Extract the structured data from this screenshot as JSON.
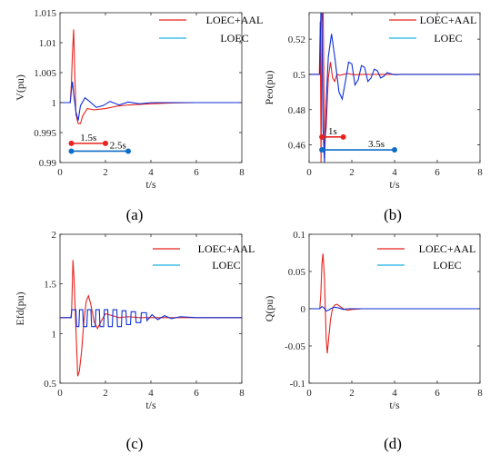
{
  "chart_data": [
    {
      "type": "line",
      "panel_label": "(a)",
      "xlabel": "t/s",
      "ylabel": "V(pu)",
      "xlim": [
        0,
        8
      ],
      "ylim": [
        0.99,
        1.015
      ],
      "xticks": [
        0,
        2,
        4,
        6,
        8
      ],
      "xtick_labels": [
        "0",
        "2",
        "4",
        "6",
        "8"
      ],
      "yticks": [
        0.99,
        0.995,
        1,
        1.005,
        1.01,
        1.015
      ],
      "ytick_labels": [
        "0.99",
        "0.995",
        "1",
        "1.005",
        "1.01",
        "1.015"
      ],
      "legend": "top-right",
      "series": [
        {
          "name": "LOEC+AAL",
          "color": "#e8231e",
          "x": [
            0,
            0.45,
            0.5,
            0.55,
            0.6,
            0.65,
            0.7,
            0.8,
            0.9,
            1.0,
            1.2,
            1.5,
            2.0,
            2.5,
            3.0,
            4.0,
            5.0,
            6.0,
            8.0
          ],
          "y": [
            1.0,
            1.0,
            1.003,
            1.0085,
            1.0122,
            1.005,
            0.998,
            0.9965,
            0.9965,
            0.9978,
            0.999,
            0.9988,
            0.999,
            0.9994,
            0.9996,
            0.9998,
            0.99995,
            1.0,
            1.0
          ]
        },
        {
          "name": "LOEC",
          "color": "#0e2fd6",
          "x": [
            0,
            0.45,
            0.5,
            0.55,
            0.6,
            0.7,
            0.8,
            0.9,
            1.1,
            1.3,
            1.6,
            1.9,
            2.2,
            2.6,
            3.0,
            3.5,
            4.0,
            5.0,
            6.0,
            8.0
          ],
          "y": [
            1.0,
            1.0,
            1.002,
            1.0035,
            1.0015,
            0.9985,
            0.997,
            0.9995,
            1.0008,
            1.0002,
            0.9992,
            0.9995,
            1.0002,
            0.9996,
            1.0001,
            0.9998,
            1.0,
            1.0,
            1.0,
            1.0
          ]
        }
      ],
      "annotations": [
        {
          "text": "1.5s",
          "x_start": 0.5,
          "x_end": 2.0,
          "y": 0.9932,
          "color": "#e8231e"
        },
        {
          "text": "2.5s",
          "x_start": 0.5,
          "x_end": 3.0,
          "y": 0.9919,
          "color": "#0e6ec7"
        }
      ]
    },
    {
      "type": "line",
      "panel_label": "(b)",
      "xlabel": "t/s",
      "ylabel": "Peo(pu)",
      "xlim": [
        0,
        8
      ],
      "ylim": [
        0.45,
        0.535
      ],
      "xticks": [
        0,
        2,
        4,
        6,
        8
      ],
      "xtick_labels": [
        "0",
        "2",
        "4",
        "6",
        "8"
      ],
      "yticks": [
        0.46,
        0.48,
        0.5,
        0.52
      ],
      "ytick_labels": [
        "0.46",
        "0.48",
        "0.5",
        "0.52"
      ],
      "legend": "top-right",
      "series": [
        {
          "name": "LOEC+AAL",
          "color": "#e8231e",
          "x": [
            0,
            0.48,
            0.52,
            0.56,
            0.6,
            0.66,
            0.72,
            0.8,
            0.9,
            1.0,
            1.1,
            1.2,
            1.3,
            1.45,
            1.6,
            1.8,
            2.1,
            2.5,
            3.0,
            4.0,
            8.0
          ],
          "y": [
            0.5,
            0.5,
            0.53,
            0.45,
            0.53,
            0.535,
            0.46,
            0.47,
            0.498,
            0.507,
            0.498,
            0.496,
            0.5,
            0.4995,
            0.5,
            0.5005,
            0.4998,
            0.5,
            0.5,
            0.5,
            0.5
          ]
        },
        {
          "name": "LOEC",
          "color": "#0e2fd6",
          "x": [
            0,
            0.5,
            0.55,
            0.6,
            0.65,
            0.72,
            0.8,
            0.9,
            1.05,
            1.2,
            1.4,
            1.55,
            1.7,
            1.85,
            2.0,
            2.15,
            2.3,
            2.45,
            2.6,
            2.75,
            2.9,
            3.05,
            3.2,
            3.35,
            3.5,
            3.65,
            3.8,
            4.0,
            4.3,
            8.0
          ],
          "y": [
            0.5,
            0.5,
            0.535,
            0.535,
            0.47,
            0.45,
            0.485,
            0.51,
            0.523,
            0.51,
            0.49,
            0.486,
            0.496,
            0.507,
            0.506,
            0.494,
            0.497,
            0.505,
            0.504,
            0.496,
            0.498,
            0.503,
            0.502,
            0.498,
            0.499,
            0.501,
            0.5005,
            0.4998,
            0.5,
            0.5
          ]
        }
      ],
      "annotations": [
        {
          "text": "1s",
          "x_start": 0.6,
          "x_end": 1.6,
          "y": 0.4645,
          "color": "#e8231e"
        },
        {
          "text": "3.5s",
          "x_start": 0.6,
          "x_end": 4.0,
          "y": 0.4572,
          "color": "#0e6ec7"
        }
      ]
    },
    {
      "type": "line",
      "panel_label": "(c)",
      "xlabel": "t/s",
      "ylabel": "Efd(pu)",
      "xlim": [
        0,
        8
      ],
      "ylim": [
        0.5,
        2.0
      ],
      "xticks": [
        0,
        2,
        4,
        6,
        8
      ],
      "xtick_labels": [
        "0",
        "2",
        "4",
        "6",
        "8"
      ],
      "yticks": [
        0.5,
        1.0,
        1.5,
        2.0
      ],
      "ytick_labels": [
        "0.5",
        "1",
        "1.5",
        "2"
      ],
      "legend": "top-right",
      "series": [
        {
          "name": "LOEC+AAL",
          "color": "#e8231e",
          "x": [
            0,
            0.5,
            0.52,
            0.57,
            0.62,
            0.7,
            0.78,
            0.85,
            0.95,
            1.05,
            1.15,
            1.25,
            1.35,
            1.5,
            1.65,
            1.8,
            2.0,
            2.3,
            2.6,
            3.0,
            3.5,
            4.0,
            5.0,
            6.0,
            8.0
          ],
          "y": [
            1.16,
            1.16,
            1.3,
            1.74,
            1.55,
            1.05,
            0.57,
            0.62,
            0.82,
            1.12,
            1.32,
            1.38,
            1.3,
            1.12,
            1.05,
            1.12,
            1.2,
            1.18,
            1.16,
            1.17,
            1.16,
            1.16,
            1.16,
            1.16,
            1.16
          ]
        },
        {
          "name": "LOEC",
          "color": "#0e2fd6",
          "x": [
            0,
            0.48,
            0.52,
            0.6,
            0.7,
            0.73,
            0.83,
            0.86,
            1.0,
            1.03,
            1.18,
            1.21,
            1.36,
            1.39,
            1.55,
            1.58,
            1.73,
            1.76,
            1.92,
            1.95,
            2.1,
            2.13,
            2.3,
            2.33,
            2.5,
            2.53,
            2.7,
            2.73,
            2.9,
            2.93,
            3.1,
            3.13,
            3.32,
            3.35,
            3.55,
            3.58,
            3.8,
            3.83,
            4.05,
            4.3,
            4.6,
            4.9,
            5.3,
            6.0,
            8.0
          ],
          "y": [
            1.16,
            1.16,
            1.24,
            1.24,
            1.24,
            1.07,
            1.07,
            1.24,
            1.24,
            1.07,
            1.07,
            1.24,
            1.24,
            1.07,
            1.07,
            1.24,
            1.24,
            1.07,
            1.07,
            1.24,
            1.24,
            1.07,
            1.07,
            1.24,
            1.24,
            1.07,
            1.07,
            1.23,
            1.23,
            1.09,
            1.09,
            1.22,
            1.22,
            1.11,
            1.11,
            1.21,
            1.21,
            1.13,
            1.19,
            1.14,
            1.18,
            1.15,
            1.17,
            1.16,
            1.16
          ]
        }
      ]
    },
    {
      "type": "line",
      "panel_label": "(d)",
      "xlabel": "t/s",
      "ylabel": "Q(pu)",
      "xlim": [
        0,
        8
      ],
      "ylim": [
        -0.1,
        0.1
      ],
      "xticks": [
        0,
        2,
        4,
        6,
        8
      ],
      "xtick_labels": [
        "0",
        "2",
        "4",
        "6",
        "8"
      ],
      "yticks": [
        -0.1,
        -0.05,
        0,
        0.05,
        0.1
      ],
      "ytick_labels": [
        "-0.1",
        "-0.05",
        "0",
        "0.05",
        "0.1"
      ],
      "legend": "top-right",
      "series": [
        {
          "name": "LOEC+AAL",
          "color": "#e8231e",
          "x": [
            0,
            0.5,
            0.55,
            0.6,
            0.65,
            0.72,
            0.8,
            0.85,
            0.9,
            1.0,
            1.1,
            1.2,
            1.3,
            1.4,
            1.6,
            1.8,
            2.0,
            2.5,
            3.0,
            8.0
          ],
          "y": [
            0,
            0,
            0.02,
            0.06,
            0.074,
            0.04,
            -0.04,
            -0.06,
            -0.045,
            -0.015,
            0.001,
            0.005,
            0.006,
            0.004,
            0.0,
            -0.002,
            -0.001,
            0.0,
            0.0,
            0.0
          ]
        },
        {
          "name": "LOEC",
          "color": "#0e2fd6",
          "x": [
            0,
            0.5,
            0.6,
            0.7,
            0.8,
            0.9,
            1.0,
            1.2,
            1.4,
            1.6,
            1.8,
            2.0,
            8.0
          ],
          "y": [
            0,
            0,
            0.003,
            0.001,
            -0.003,
            -0.002,
            0.0,
            0.002,
            0.001,
            -0.001,
            0.0,
            0.0,
            0.0
          ]
        }
      ]
    }
  ]
}
